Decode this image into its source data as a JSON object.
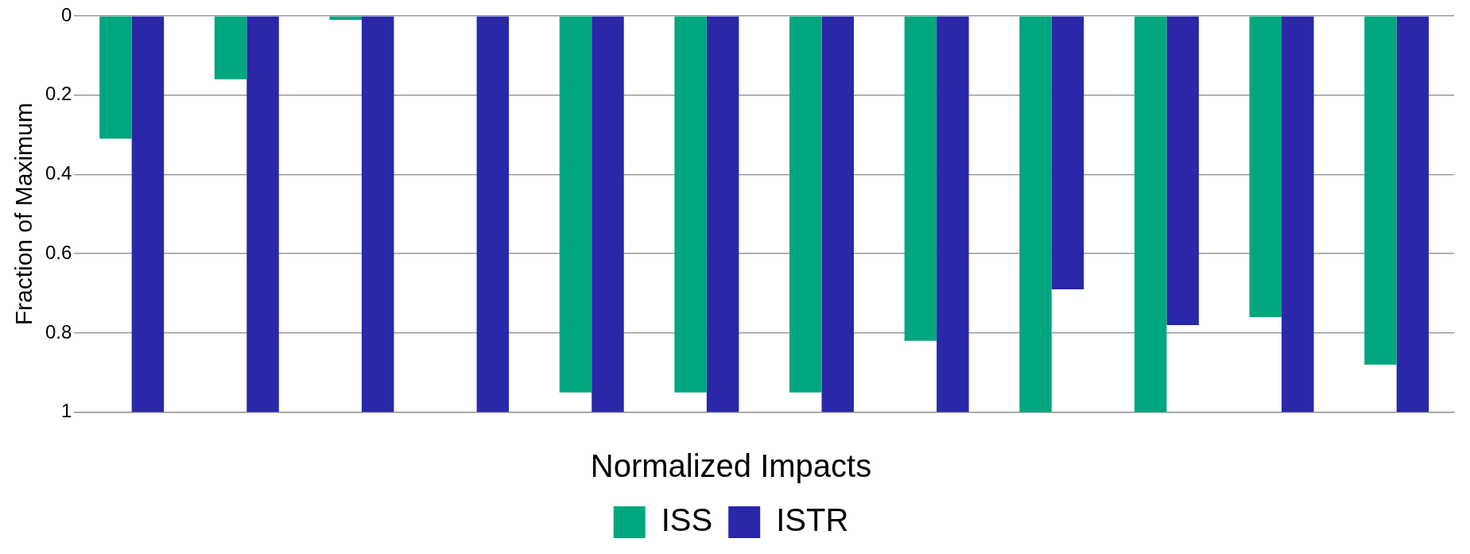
{
  "chart_data": {
    "type": "bar",
    "ylabel": "Fraction of Maximum",
    "legend_title": "Normalized Impacts",
    "categories": [
      null,
      null,
      null,
      null,
      null,
      null,
      null,
      null,
      null,
      null,
      null,
      null
    ],
    "series": [
      {
        "name": "ISS",
        "color": "#00a77e",
        "values": [
          0.31,
          0.16,
          0.01,
          0,
          0.95,
          0.95,
          0.95,
          0.82,
          1,
          1,
          0.76,
          0.88
        ]
      },
      {
        "name": "ISTR",
        "color": "#2a27a8",
        "values": [
          1,
          1,
          1,
          1,
          1,
          1,
          1,
          1,
          0.69,
          0.78,
          1,
          1
        ]
      }
    ],
    "ylim": [
      1,
      0
    ],
    "yticks": [
      0,
      0.2,
      0.4,
      0.6,
      0.8,
      1
    ],
    "grid": "y",
    "legend": "bottom"
  }
}
